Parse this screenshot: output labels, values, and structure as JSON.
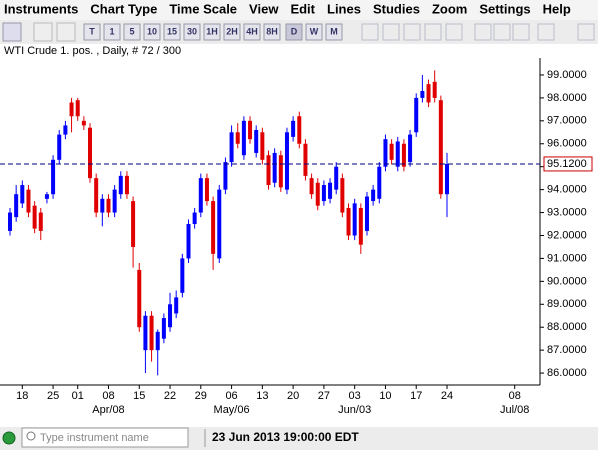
{
  "menu": [
    "Instruments",
    "Chart Type",
    "Time Scale",
    "View",
    "Edit",
    "Lines",
    "Studies",
    "Zoom",
    "Settings",
    "Help"
  ],
  "toolbar": [
    "T",
    "1",
    "5",
    "10",
    "15",
    "30",
    "1H",
    "2H",
    "4H",
    "8H",
    "D",
    "W",
    "M"
  ],
  "chart_label": "WTI Crude 1. pos. , Daily, # 72 / 300",
  "chart_data": {
    "type": "candlestick",
    "up_color": "#0000ff",
    "down_color": "#e00000",
    "open": [
      92.2,
      92.8,
      93.4,
      94.0,
      93.3,
      93.0,
      93.6,
      93.8,
      95.3,
      96.4,
      97.8,
      97.9,
      97.0,
      96.7,
      94.5,
      93.0,
      93.6,
      93.0,
      93.8,
      94.6,
      93.5,
      90.5,
      87.0,
      88.5,
      87.0,
      87.5,
      88.0,
      88.6,
      89.5,
      91.0,
      92.5,
      93.0,
      94.5,
      93.5,
      91.0,
      94.0,
      95.2,
      96.5,
      95.5,
      97.0,
      95.6,
      96.5,
      95.5,
      94.3,
      95.5,
      94.0,
      96.3,
      97.2,
      96.0,
      94.5,
      94.3,
      93.5,
      93.6,
      94.0,
      94.5,
      93.2,
      92.0,
      93.2,
      92.2,
      93.5,
      93.6,
      95.0,
      96.0,
      95.0,
      96.0,
      95.2,
      96.5,
      98.0,
      98.6,
      98.7,
      97.9,
      93.8
    ],
    "high": [
      93.2,
      94.2,
      94.4,
      94.2,
      93.5,
      93.2,
      93.9,
      95.5,
      96.6,
      97.0,
      98.0,
      98.0,
      97.2,
      96.9,
      94.7,
      93.8,
      93.8,
      94.2,
      94.8,
      94.8,
      93.7,
      90.8,
      88.7,
      88.7,
      87.9,
      88.6,
      89.5,
      89.6,
      91.2,
      92.7,
      93.2,
      94.7,
      94.7,
      93.7,
      94.2,
      95.4,
      96.8,
      96.9,
      97.2,
      97.2,
      96.8,
      96.7,
      95.7,
      95.8,
      95.7,
      96.7,
      97.2,
      97.4,
      96.2,
      94.7,
      94.5,
      94.4,
      94.5,
      95.2,
      94.7,
      93.4,
      93.6,
      93.4,
      93.9,
      94.2,
      95.2,
      96.4,
      96.2,
      96.3,
      96.2,
      96.6,
      98.2,
      99.0,
      98.8,
      99.2,
      98.1,
      95.6
    ],
    "low": [
      92.0,
      92.6,
      93.2,
      92.8,
      92.1,
      91.8,
      93.4,
      93.6,
      95.1,
      96.2,
      96.5,
      97.0,
      96.6,
      94.3,
      92.8,
      92.4,
      92.8,
      92.8,
      93.6,
      93.6,
      90.6,
      87.8,
      86.0,
      86.5,
      85.9,
      87.3,
      87.8,
      88.4,
      89.3,
      90.8,
      92.3,
      92.8,
      93.3,
      90.5,
      90.8,
      93.8,
      95.0,
      95.8,
      95.3,
      96.0,
      95.4,
      95.1,
      94.0,
      94.1,
      93.9,
      93.8,
      96.1,
      95.8,
      94.4,
      93.6,
      93.1,
      93.3,
      93.4,
      93.8,
      92.8,
      91.8,
      91.8,
      91.2,
      92.0,
      93.3,
      93.4,
      94.8,
      95.1,
      94.8,
      94.8,
      95.0,
      96.3,
      97.8,
      97.6,
      97.8,
      93.6,
      92.8
    ],
    "close": [
      93.0,
      93.8,
      94.2,
      93.0,
      92.3,
      92.2,
      93.8,
      95.3,
      96.4,
      96.8,
      97.2,
      97.2,
      96.8,
      94.5,
      93.0,
      93.6,
      93.0,
      94.0,
      94.6,
      93.8,
      91.5,
      88.0,
      88.5,
      87.0,
      87.8,
      88.4,
      89.0,
      89.3,
      91.0,
      92.5,
      93.0,
      94.5,
      93.5,
      91.2,
      94.0,
      95.2,
      96.5,
      96.0,
      97.0,
      96.2,
      96.6,
      95.3,
      94.2,
      95.6,
      94.1,
      96.5,
      97.0,
      96.0,
      94.6,
      93.8,
      93.3,
      94.2,
      94.3,
      95.0,
      93.0,
      92.0,
      93.4,
      91.6,
      93.7,
      94.0,
      95.0,
      96.2,
      95.3,
      96.1,
      95.0,
      96.4,
      98.0,
      98.3,
      97.8,
      98.0,
      93.8,
      95.12
    ],
    "ylim": [
      85.48,
      99.74
    ],
    "yticks": [
      {
        "value": 86,
        "label": "86.0000"
      },
      {
        "value": 87,
        "label": "87.0000"
      },
      {
        "value": 88,
        "label": "88.0000"
      },
      {
        "value": 89,
        "label": "89.0000"
      },
      {
        "value": 90,
        "label": "90.0000"
      },
      {
        "value": 91,
        "label": "91.0000"
      },
      {
        "value": 92,
        "label": "92.0000"
      },
      {
        "value": 93,
        "label": "93.0000"
      },
      {
        "value": 94,
        "label": "94.0000"
      },
      {
        "value": 95,
        "label": "95.0000"
      },
      {
        "value": 96,
        "label": "96.0000"
      },
      {
        "value": 97,
        "label": "97.0000"
      },
      {
        "value": 98,
        "label": "98.0000"
      },
      {
        "value": 99,
        "label": "99.0000"
      }
    ],
    "xticks": [
      {
        "value": 2,
        "label": "18"
      },
      {
        "value": 7,
        "label": "25"
      },
      {
        "value": 11,
        "label": "01"
      },
      {
        "value": 16,
        "label": "08"
      },
      {
        "value": 21,
        "label": "15"
      },
      {
        "value": 26,
        "label": "22"
      },
      {
        "value": 31,
        "label": "29"
      },
      {
        "value": 36,
        "label": "06"
      },
      {
        "value": 41,
        "label": "13"
      },
      {
        "value": 46,
        "label": "20"
      },
      {
        "value": 51,
        "label": "27"
      },
      {
        "value": 56,
        "label": "03"
      },
      {
        "value": 61,
        "label": "10"
      },
      {
        "value": 66,
        "label": "17"
      },
      {
        "value": 71,
        "label": "24"
      },
      {
        "value": 82,
        "label": "08"
      }
    ],
    "month_ticks": [
      {
        "value": 16,
        "label": "Apr/08"
      },
      {
        "value": 36,
        "label": "May/06"
      },
      {
        "value": 56,
        "label": "Jun/03"
      },
      {
        "value": 82,
        "label": "Jul/08"
      }
    ],
    "price_line": {
      "value": 95.12,
      "label": "95.1200"
    }
  },
  "status": {
    "placeholder": "Type instrument name",
    "time": "23 Jun 2013 19:00:00 EDT"
  }
}
